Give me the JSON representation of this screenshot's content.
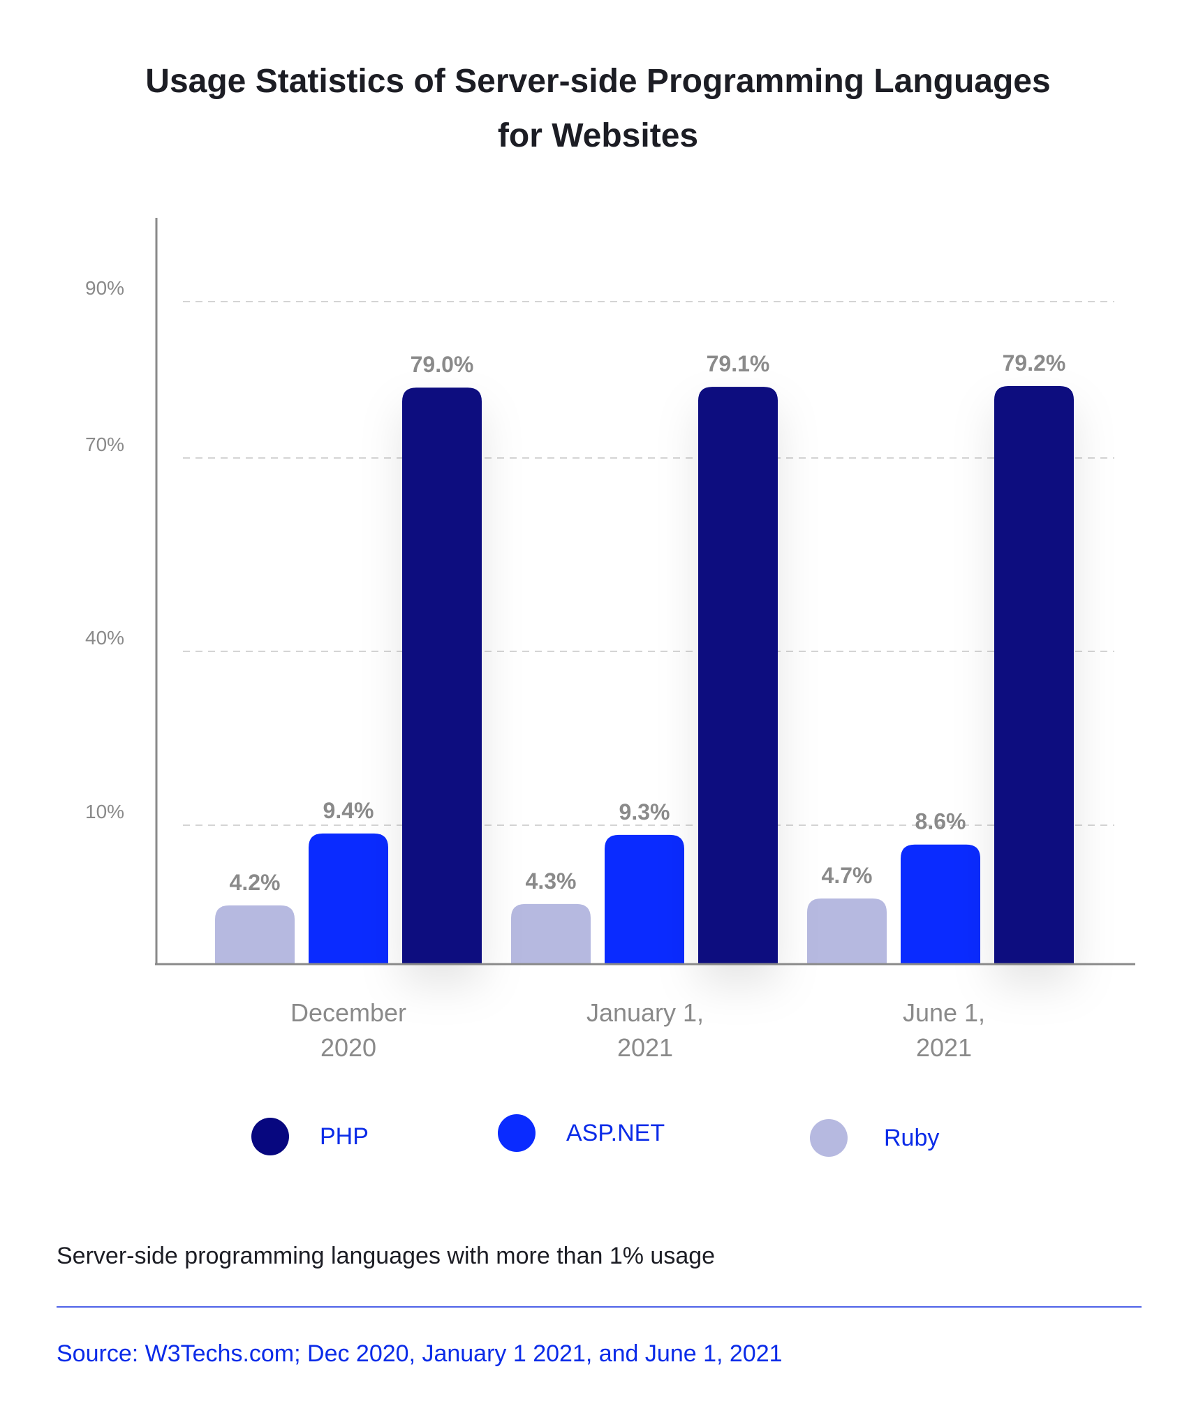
{
  "chart_data": {
    "type": "bar",
    "title": "Usage Statistics of Server-side Programming Languages for Websites",
    "title_lines": [
      "Usage Statistics of Server-side Programming Languages",
      "for Websites"
    ],
    "categories": [
      [
        "December",
        "2020"
      ],
      [
        "January 1,",
        "2021"
      ],
      [
        "June 1,",
        "2021"
      ]
    ],
    "series": [
      {
        "name": "Ruby",
        "color": "#b6b9e0",
        "values": [
          4.2,
          4.3,
          4.7
        ],
        "labels": [
          "4.2%",
          "4.3%",
          "4.7%"
        ]
      },
      {
        "name": "ASP.NET",
        "color": "#0a2bff",
        "values": [
          9.4,
          9.3,
          8.6
        ],
        "labels": [
          "9.4%",
          "9.3%",
          "8.6%"
        ]
      },
      {
        "name": "PHP",
        "color": "#07077f",
        "values": [
          79.0,
          79.1,
          79.2
        ],
        "labels": [
          "79.0%",
          "79.1%",
          "79.2%"
        ]
      }
    ],
    "y_ticks": [
      {
        "value": 10,
        "label": "10%"
      },
      {
        "value": 40,
        "label": "40%"
      },
      {
        "value": 70,
        "label": "70%"
      },
      {
        "value": 90,
        "label": "90%"
      }
    ],
    "grid": true,
    "legend_position": "bottom"
  },
  "legend": [
    {
      "name": "PHP",
      "color": "#07077f"
    },
    {
      "name": "ASP.NET",
      "color": "#0a2bff"
    },
    {
      "name": "Ruby",
      "color": "#b6b9e0"
    }
  ],
  "footer": {
    "note": "Server-side programming languages with more than 1% usage",
    "source": "Source: W3Techs.com; Dec 2020, January 1 2021, and June 1, 2021"
  },
  "colors": {
    "title": "#1c1d24",
    "value_label": "#8a8a8a",
    "axis": "#8a8a8a",
    "grid": "#d4d4d4",
    "link": "#0a2be8"
  }
}
